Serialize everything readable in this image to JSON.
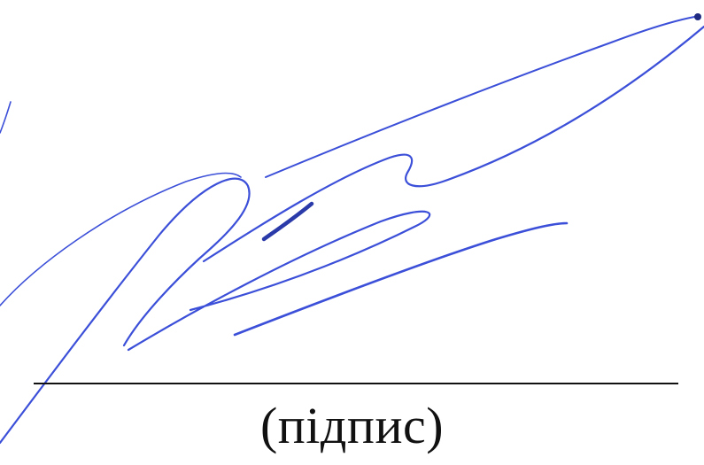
{
  "signature": {
    "caption": "(підпис)",
    "ink_color": "#3b4fd8",
    "line_color": "#111111"
  }
}
